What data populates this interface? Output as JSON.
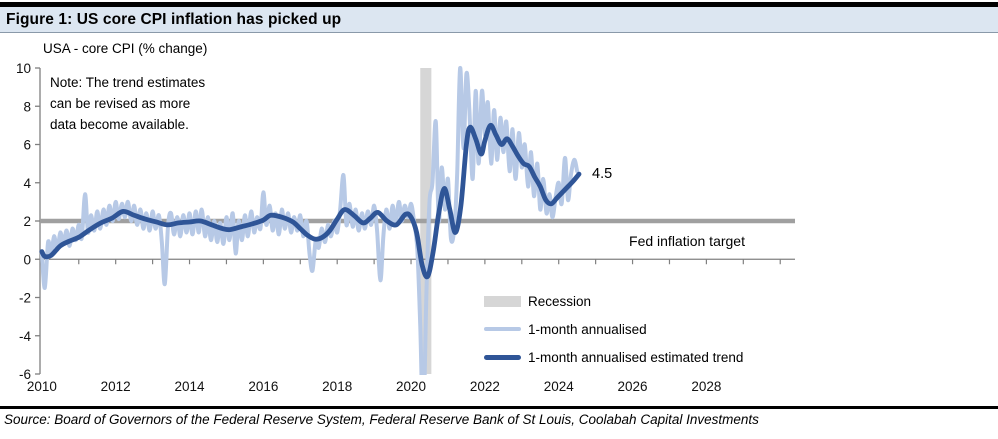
{
  "figure": {
    "title": "Figure 1: US core CPI inflation has picked up",
    "subtitle": "USA - core CPI (% change)",
    "note": "Note: The trend estimates\ncan be revised as more\ndata become available.",
    "source": "Source: Board of Governors of the Federal Reserve System, Federal Reserve Bank of St Louis, Coolabah Capital Investments"
  },
  "annotations": {
    "end_value_label": "4.5",
    "fed_target_label": "Fed inflation target"
  },
  "legend": [
    {
      "label": "Recession",
      "type": "area",
      "color": "#d6d6d6"
    },
    {
      "label": "1-month annualised",
      "type": "line",
      "color": "#b7c9e6"
    },
    {
      "label": "1-month annualised estimated trend",
      "type": "line",
      "color": "#2f5597"
    }
  ],
  "colors": {
    "title_bar_bg": "#dce6f1",
    "axis": "#808080",
    "fed_target_line": "#a0a0a0",
    "recession_band": "#d6d6d6",
    "series_light": "#b7c9e6",
    "series_dark": "#2f5597",
    "rule": "#000000"
  },
  "chart_data": {
    "type": "line",
    "title": "USA - core CPI (% change)",
    "xlabel": "",
    "ylabel": "",
    "grid": false,
    "legend_position": "inside-lower-right",
    "xlim": [
      2009.95,
      2030.4
    ],
    "ylim": [
      -6,
      10
    ],
    "x_ticks": [
      2010,
      2012,
      2014,
      2016,
      2018,
      2020,
      2022,
      2024,
      2026,
      2028
    ],
    "x_minor_tick_step": 1,
    "y_ticks": [
      10,
      8,
      6,
      4,
      2,
      0,
      -2,
      -4,
      -6
    ],
    "fed_target_value": 2,
    "recession_bands": [
      {
        "from": 2020.25,
        "to": 2020.55
      }
    ],
    "series": [
      {
        "name": "1-month annualised",
        "color": "#b7c9e6",
        "width": 4,
        "points": [
          [
            2010.0,
            0.3
          ],
          [
            2010.08,
            -1.5
          ],
          [
            2010.17,
            0.9
          ],
          [
            2010.25,
            0.2
          ],
          [
            2010.33,
            1.2
          ],
          [
            2010.42,
            0.5
          ],
          [
            2010.5,
            1.4
          ],
          [
            2010.58,
            0.8
          ],
          [
            2010.67,
            1.5
          ],
          [
            2010.75,
            0.7
          ],
          [
            2010.83,
            1.6
          ],
          [
            2010.92,
            1.0
          ],
          [
            2011.0,
            1.8
          ],
          [
            2011.08,
            1.1
          ],
          [
            2011.17,
            3.4
          ],
          [
            2011.25,
            1.4
          ],
          [
            2011.33,
            2.3
          ],
          [
            2011.42,
            1.5
          ],
          [
            2011.5,
            2.5
          ],
          [
            2011.58,
            1.6
          ],
          [
            2011.67,
            2.6
          ],
          [
            2011.75,
            1.8
          ],
          [
            2011.83,
            2.8
          ],
          [
            2011.92,
            2.0
          ],
          [
            2012.0,
            3.0
          ],
          [
            2012.08,
            2.1
          ],
          [
            2012.17,
            2.9
          ],
          [
            2012.25,
            2.2
          ],
          [
            2012.33,
            3.0
          ],
          [
            2012.42,
            2.0
          ],
          [
            2012.5,
            2.8
          ],
          [
            2012.58,
            1.8
          ],
          [
            2012.67,
            2.6
          ],
          [
            2012.75,
            1.6
          ],
          [
            2012.83,
            2.4
          ],
          [
            2012.92,
            1.5
          ],
          [
            2013.0,
            2.5
          ],
          [
            2013.08,
            1.6
          ],
          [
            2013.17,
            2.3
          ],
          [
            2013.25,
            0.9
          ],
          [
            2013.33,
            -1.3
          ],
          [
            2013.42,
            1.8
          ],
          [
            2013.5,
            2.4
          ],
          [
            2013.58,
            1.3
          ],
          [
            2013.67,
            2.2
          ],
          [
            2013.75,
            1.2
          ],
          [
            2013.83,
            2.3
          ],
          [
            2013.92,
            1.4
          ],
          [
            2014.0,
            2.4
          ],
          [
            2014.08,
            1.3
          ],
          [
            2014.17,
            2.5
          ],
          [
            2014.25,
            1.4
          ],
          [
            2014.33,
            2.6
          ],
          [
            2014.42,
            1.2
          ],
          [
            2014.5,
            2.2
          ],
          [
            2014.58,
            1.0
          ],
          [
            2014.67,
            2.0
          ],
          [
            2014.75,
            0.9
          ],
          [
            2014.83,
            1.9
          ],
          [
            2014.92,
            0.8
          ],
          [
            2015.0,
            2.2
          ],
          [
            2015.08,
            1.0
          ],
          [
            2015.17,
            2.4
          ],
          [
            2015.25,
            0.3
          ],
          [
            2015.33,
            2.0
          ],
          [
            2015.42,
            1.0
          ],
          [
            2015.5,
            2.3
          ],
          [
            2015.58,
            1.2
          ],
          [
            2015.67,
            2.5
          ],
          [
            2015.75,
            1.4
          ],
          [
            2015.83,
            2.2
          ],
          [
            2015.92,
            1.6
          ],
          [
            2016.0,
            3.5
          ],
          [
            2016.08,
            1.8
          ],
          [
            2016.17,
            2.8
          ],
          [
            2016.25,
            1.5
          ],
          [
            2016.33,
            2.4
          ],
          [
            2016.42,
            1.3
          ],
          [
            2016.5,
            2.6
          ],
          [
            2016.58,
            1.6
          ],
          [
            2016.67,
            2.4
          ],
          [
            2016.75,
            1.4
          ],
          [
            2016.83,
            2.2
          ],
          [
            2016.92,
            1.5
          ],
          [
            2017.0,
            2.3
          ],
          [
            2017.08,
            1.2
          ],
          [
            2017.17,
            2.0
          ],
          [
            2017.25,
            0.3
          ],
          [
            2017.33,
            -0.6
          ],
          [
            2017.42,
            1.0
          ],
          [
            2017.5,
            0.6
          ],
          [
            2017.58,
            1.6
          ],
          [
            2017.67,
            0.9
          ],
          [
            2017.75,
            1.8
          ],
          [
            2017.83,
            1.2
          ],
          [
            2017.92,
            2.0
          ],
          [
            2018.0,
            1.4
          ],
          [
            2018.08,
            2.6
          ],
          [
            2018.17,
            4.4
          ],
          [
            2018.25,
            1.8
          ],
          [
            2018.33,
            2.9
          ],
          [
            2018.42,
            1.7
          ],
          [
            2018.5,
            2.6
          ],
          [
            2018.58,
            1.5
          ],
          [
            2018.67,
            2.4
          ],
          [
            2018.75,
            1.6
          ],
          [
            2018.83,
            2.5
          ],
          [
            2018.92,
            1.8
          ],
          [
            2019.0,
            2.8
          ],
          [
            2019.08,
            1.5
          ],
          [
            2019.17,
            -1.1
          ],
          [
            2019.25,
            1.2
          ],
          [
            2019.33,
            2.6
          ],
          [
            2019.42,
            1.6
          ],
          [
            2019.5,
            2.8
          ],
          [
            2019.58,
            1.8
          ],
          [
            2019.67,
            3.0
          ],
          [
            2019.75,
            2.0
          ],
          [
            2019.83,
            2.8
          ],
          [
            2019.92,
            2.2
          ],
          [
            2020.0,
            2.9
          ],
          [
            2020.08,
            2.0
          ],
          [
            2020.17,
            0.5
          ],
          [
            2020.25,
            -3.5
          ],
          [
            2020.33,
            -8.5
          ],
          [
            2020.42,
            -1.5
          ],
          [
            2020.5,
            3.0
          ],
          [
            2020.58,
            4.0
          ],
          [
            2020.67,
            7.2
          ],
          [
            2020.75,
            2.0
          ],
          [
            2020.83,
            4.8
          ],
          [
            2020.92,
            2.6
          ],
          [
            2021.0,
            4.2
          ],
          [
            2021.08,
            1.1
          ],
          [
            2021.17,
            1.6
          ],
          [
            2021.25,
            4.5
          ],
          [
            2021.33,
            10.0
          ],
          [
            2021.42,
            5.8
          ],
          [
            2021.5,
            9.7
          ],
          [
            2021.58,
            7.8
          ],
          [
            2021.67,
            4.2
          ],
          [
            2021.75,
            8.8
          ],
          [
            2021.83,
            5.0
          ],
          [
            2021.92,
            8.8
          ],
          [
            2022.0,
            6.5
          ],
          [
            2022.08,
            8.2
          ],
          [
            2022.17,
            5.0
          ],
          [
            2022.25,
            7.8
          ],
          [
            2022.33,
            5.2
          ],
          [
            2022.42,
            7.4
          ],
          [
            2022.5,
            5.6
          ],
          [
            2022.58,
            7.2
          ],
          [
            2022.67,
            4.6
          ],
          [
            2022.75,
            6.8
          ],
          [
            2022.83,
            4.2
          ],
          [
            2022.92,
            6.6
          ],
          [
            2023.0,
            4.8
          ],
          [
            2023.08,
            6.0
          ],
          [
            2023.17,
            3.8
          ],
          [
            2023.25,
            5.6
          ],
          [
            2023.33,
            3.3
          ],
          [
            2023.42,
            5.0
          ],
          [
            2023.5,
            2.6
          ],
          [
            2023.58,
            4.2
          ],
          [
            2023.67,
            2.4
          ],
          [
            2023.75,
            3.4
          ],
          [
            2023.83,
            2.2
          ],
          [
            2023.92,
            3.3
          ],
          [
            2024.0,
            4.0
          ],
          [
            2024.08,
            2.9
          ],
          [
            2024.17,
            5.3
          ],
          [
            2024.25,
            3.1
          ],
          [
            2024.33,
            4.4
          ],
          [
            2024.42,
            5.2
          ],
          [
            2024.5,
            4.6
          ]
        ]
      },
      {
        "name": "1-month annualised estimated trend",
        "color": "#2f5597",
        "width": 4.8,
        "points": [
          [
            2010.0,
            0.4
          ],
          [
            2010.08,
            0.15
          ],
          [
            2010.25,
            0.2
          ],
          [
            2010.5,
            0.7
          ],
          [
            2010.75,
            0.95
          ],
          [
            2011.0,
            1.15
          ],
          [
            2011.3,
            1.55
          ],
          [
            2011.6,
            1.9
          ],
          [
            2011.9,
            2.15
          ],
          [
            2012.2,
            2.5
          ],
          [
            2012.5,
            2.3
          ],
          [
            2012.8,
            2.1
          ],
          [
            2013.1,
            1.95
          ],
          [
            2013.4,
            1.8
          ],
          [
            2013.7,
            1.9
          ],
          [
            2014.0,
            1.95
          ],
          [
            2014.3,
            2.0
          ],
          [
            2014.6,
            1.8
          ],
          [
            2014.9,
            1.6
          ],
          [
            2015.1,
            1.55
          ],
          [
            2015.4,
            1.7
          ],
          [
            2015.7,
            1.85
          ],
          [
            2016.0,
            2.05
          ],
          [
            2016.2,
            2.3
          ],
          [
            2016.5,
            2.2
          ],
          [
            2016.8,
            1.95
          ],
          [
            2017.0,
            1.6
          ],
          [
            2017.2,
            1.25
          ],
          [
            2017.4,
            1.05
          ],
          [
            2017.6,
            1.15
          ],
          [
            2017.8,
            1.5
          ],
          [
            2018.0,
            2.1
          ],
          [
            2018.2,
            2.6
          ],
          [
            2018.45,
            2.3
          ],
          [
            2018.7,
            1.9
          ],
          [
            2018.9,
            2.15
          ],
          [
            2019.1,
            2.45
          ],
          [
            2019.35,
            2.0
          ],
          [
            2019.6,
            1.8
          ],
          [
            2019.85,
            2.35
          ],
          [
            2020.0,
            2.2
          ],
          [
            2020.15,
            1.4
          ],
          [
            2020.3,
            -0.3
          ],
          [
            2020.45,
            -0.9
          ],
          [
            2020.6,
            0.4
          ],
          [
            2020.75,
            2.4
          ],
          [
            2020.9,
            3.7
          ],
          [
            2021.05,
            2.6
          ],
          [
            2021.2,
            1.4
          ],
          [
            2021.35,
            2.8
          ],
          [
            2021.5,
            6.0
          ],
          [
            2021.6,
            6.9
          ],
          [
            2021.75,
            6.3
          ],
          [
            2021.9,
            5.5
          ],
          [
            2022.0,
            6.2
          ],
          [
            2022.15,
            7.0
          ],
          [
            2022.3,
            6.5
          ],
          [
            2022.45,
            6.0
          ],
          [
            2022.6,
            6.3
          ],
          [
            2022.75,
            5.9
          ],
          [
            2022.9,
            5.4
          ],
          [
            2023.05,
            5.0
          ],
          [
            2023.2,
            4.85
          ],
          [
            2023.35,
            4.3
          ],
          [
            2023.5,
            3.8
          ],
          [
            2023.65,
            3.1
          ],
          [
            2023.8,
            2.9
          ],
          [
            2023.95,
            3.2
          ],
          [
            2024.1,
            3.5
          ],
          [
            2024.25,
            3.8
          ],
          [
            2024.4,
            4.1
          ],
          [
            2024.55,
            4.45
          ]
        ]
      }
    ]
  }
}
